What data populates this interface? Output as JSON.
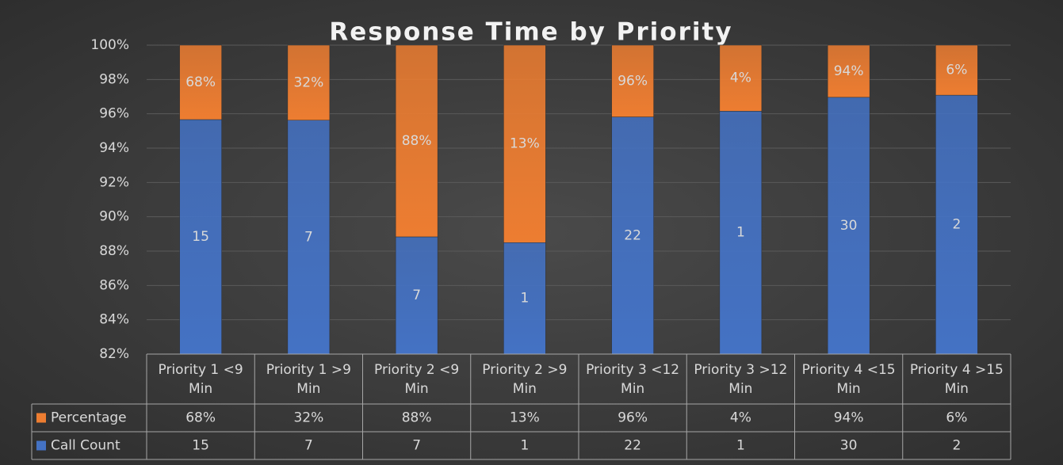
{
  "chart_data": {
    "type": "stacked_percent_bar",
    "title": "Response Time by Priority",
    "categories": [
      "Priority 1 <9 Min",
      "Priority 1 >9 Min",
      "Priority 2 <9 Min",
      "Priority 2 >9 Min",
      "Priority 3 <12 Min",
      "Priority 3 >12 Min",
      "Priority 4 <15 Min",
      "Priority 4 >15 Min"
    ],
    "series": [
      {
        "name": "Call Count",
        "color": "#4472c4",
        "values": [
          15,
          7,
          7,
          1,
          22,
          1,
          30,
          2
        ]
      },
      {
        "name": "Percentage",
        "color": "#ed7d31",
        "values": [
          0.68,
          0.32,
          0.88,
          0.13,
          0.96,
          0.04,
          0.94,
          0.06
        ],
        "value_labels": [
          "68%",
          "32%",
          "88%",
          "13%",
          "96%",
          "4%",
          "94%",
          "6%"
        ]
      }
    ],
    "ylim": [
      82,
      100
    ],
    "yticks": [
      {
        "value": 82,
        "label": "82%"
      },
      {
        "value": 84,
        "label": "84%"
      },
      {
        "value": 86,
        "label": "86%"
      },
      {
        "value": 88,
        "label": "88%"
      },
      {
        "value": 90,
        "label": "90%"
      },
      {
        "value": 92,
        "label": "92%"
      },
      {
        "value": 94,
        "label": "94%"
      },
      {
        "value": 96,
        "label": "96%"
      },
      {
        "value": 98,
        "label": "98%"
      },
      {
        "value": 100,
        "label": "100%"
      }
    ],
    "grid": true
  }
}
